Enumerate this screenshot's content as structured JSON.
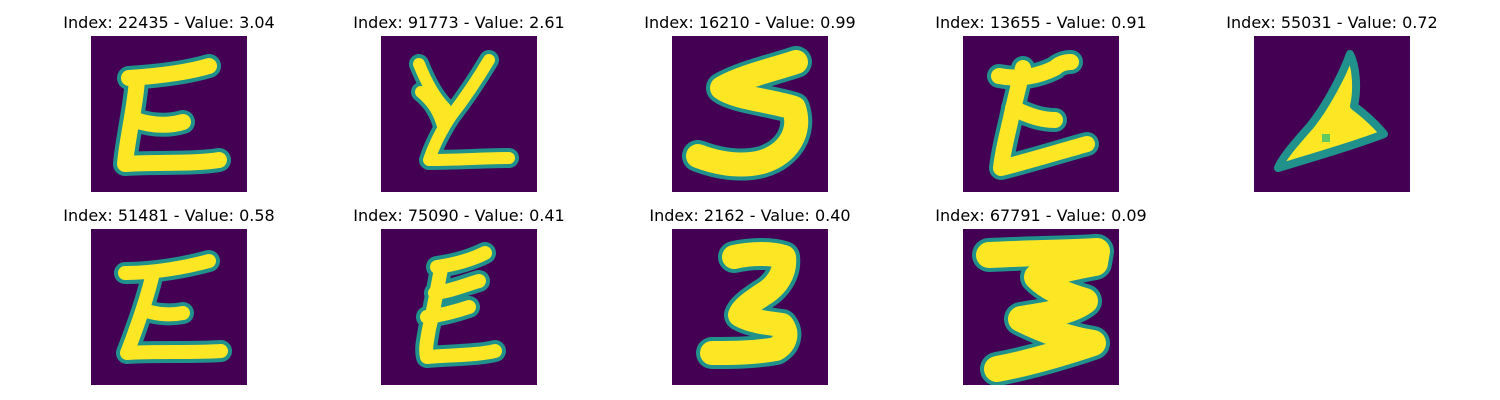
{
  "figure": {
    "background": "#440154",
    "ink": "#fde725",
    "edge_colors": [
      "#21918c",
      "#5ec962",
      "#3b528b"
    ],
    "panels": [
      {
        "title": "Index: 22435 - Value: 3.04",
        "depicts": "handwritten-glyph-z-like"
      },
      {
        "title": "Index: 91773 - Value: 2.61",
        "depicts": "handwritten-glyph-y-like"
      },
      {
        "title": "Index: 16210 - Value: 0.99",
        "depicts": "handwritten-glyph-5-like"
      },
      {
        "title": "Index: 13655 - Value: 0.91",
        "depicts": "handwritten-glyph-z-like"
      },
      {
        "title": "Index: 55031 - Value: 0.72",
        "depicts": "handwritten-glyph-triangle-like"
      },
      {
        "title": "Index: 51481 - Value: 0.58",
        "depicts": "handwritten-glyph-z-like"
      },
      {
        "title": "Index: 75090 - Value: 0.41",
        "depicts": "handwritten-glyph-e-like"
      },
      {
        "title": "Index: 2162 - Value: 0.40",
        "depicts": "handwritten-glyph-s-like"
      },
      {
        "title": "Index: 67791 - Value: 0.09",
        "depicts": "handwritten-glyph-m-like"
      }
    ]
  }
}
